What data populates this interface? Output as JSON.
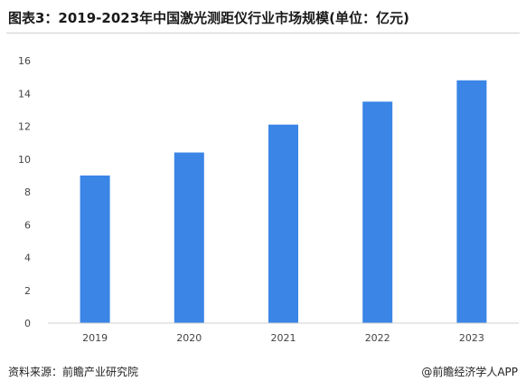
{
  "title": "图表3：2019-2023年中国激光测距仪行业市场规模(单位：亿元)",
  "source": "资料来源：前瞻产业研究院",
  "credit": "@前瞻经济学人APP",
  "colors": {
    "bar": "#3a85e6",
    "axis": "#d0d0d0",
    "tick_text": "#444444"
  },
  "chart_data": {
    "type": "bar",
    "title": "图表3：2019-2023年中国激光测距仪行业市场规模(单位：亿元)",
    "categories": [
      "2019",
      "2020",
      "2021",
      "2022",
      "2023"
    ],
    "values": [
      9.0,
      10.4,
      12.1,
      13.5,
      14.8
    ],
    "xlabel": "",
    "ylabel": "",
    "ylim": [
      0,
      16
    ],
    "yticks": [
      0,
      2,
      4,
      6,
      8,
      10,
      12,
      14,
      16
    ],
    "grid": false,
    "legend": "none"
  }
}
